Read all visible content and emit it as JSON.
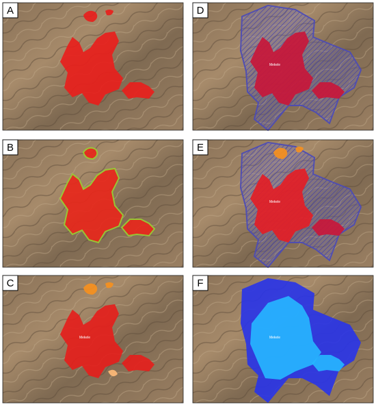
{
  "panels": [
    {
      "label": "A"
    },
    {
      "label": "D",
      "place_label": "Mekele"
    },
    {
      "label": "B"
    },
    {
      "label": "E",
      "place_label": "Mekele"
    },
    {
      "label": "C",
      "place_label": "Mekele"
    },
    {
      "label": "F",
      "place_label": "Mekele"
    }
  ]
}
